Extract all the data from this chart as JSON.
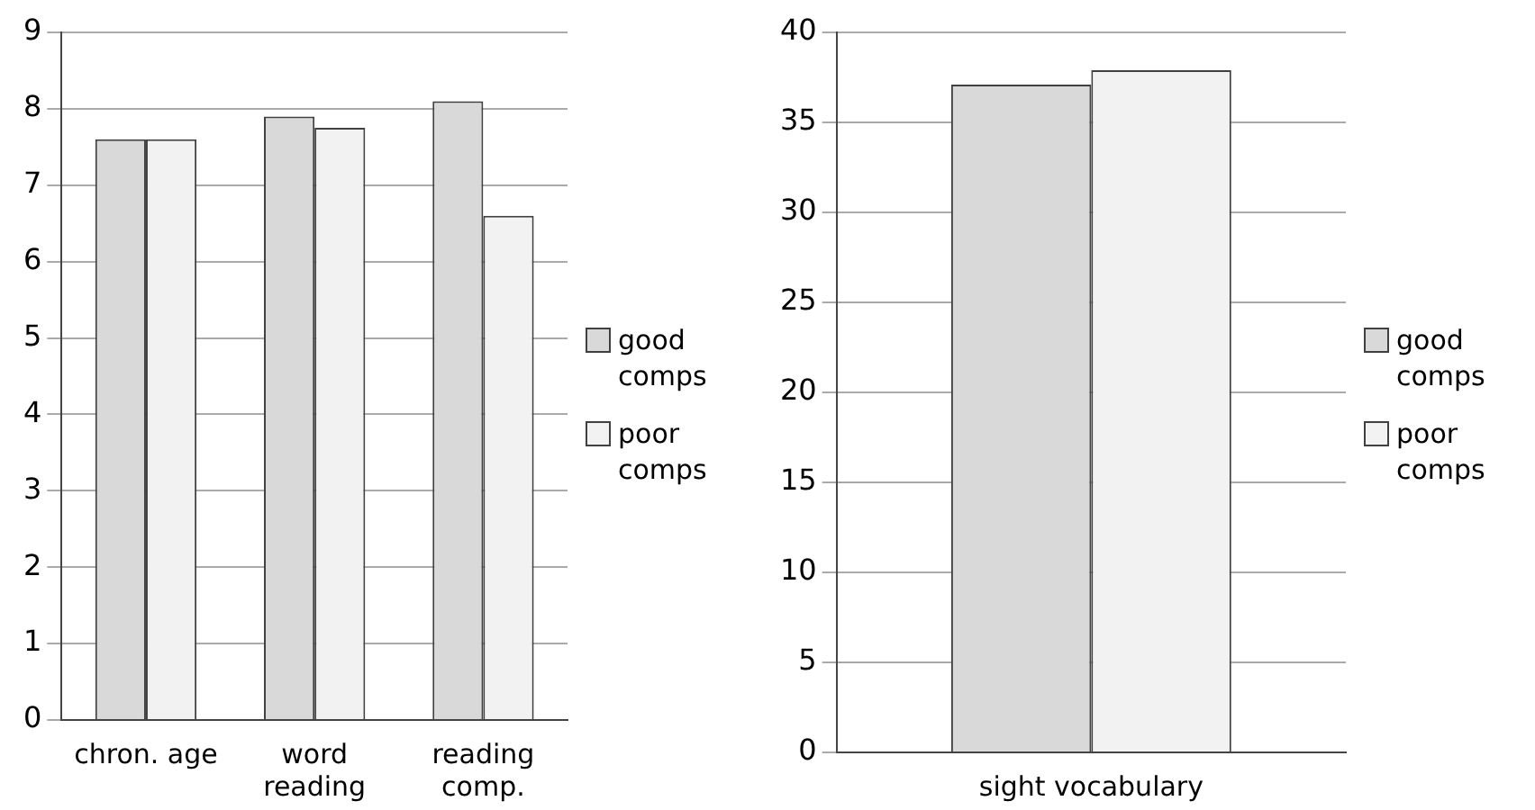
{
  "chart_data": [
    {
      "type": "bar",
      "categories": [
        "chron. age",
        "word reading",
        "reading comp."
      ],
      "series": [
        {
          "name": "good comps",
          "color": "#d9d9d9",
          "values": [
            7.6,
            7.9,
            8.1
          ]
        },
        {
          "name": "poor comps",
          "color": "#f2f2f2",
          "values": [
            7.6,
            7.75,
            6.6
          ]
        }
      ],
      "ylim": [
        0,
        9
      ],
      "yticks": [
        0,
        1,
        2,
        3,
        4,
        5,
        6,
        7,
        8,
        9
      ],
      "grid": "y",
      "legend": "right"
    },
    {
      "type": "bar",
      "categories": [
        "sight vocabulary"
      ],
      "series": [
        {
          "name": "good comps",
          "color": "#d9d9d9",
          "values": [
            37.1
          ]
        },
        {
          "name": "poor comps",
          "color": "#f2f2f2",
          "values": [
            37.9
          ]
        }
      ],
      "ylim": [
        0,
        40
      ],
      "yticks": [
        0,
        5,
        10,
        15,
        20,
        25,
        30,
        35,
        40
      ],
      "grid": "y",
      "legend": "right"
    }
  ]
}
